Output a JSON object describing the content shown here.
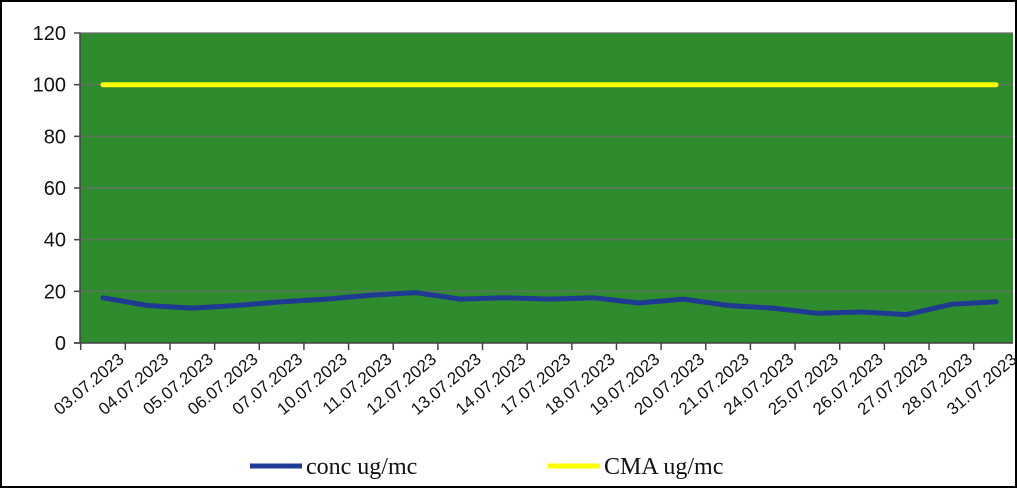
{
  "chart_data": {
    "type": "line",
    "title": "",
    "xlabel": "",
    "ylabel": "",
    "ylim": [
      0,
      120
    ],
    "y_ticks": [
      0,
      20,
      40,
      60,
      80,
      100,
      120
    ],
    "grid": true,
    "plot_background": "#2e8b2e",
    "legend_position": "bottom",
    "categories": [
      "03.07.2023",
      "04.07.2023",
      "05.07.2023",
      "06.07.2023",
      "07.07.2023",
      "10.07.2023",
      "11.07.2023",
      "12.07.2023",
      "13.07.2023",
      "14.07.2023",
      "17.07.2023",
      "18.07.2023",
      "19.07.2023",
      "20.07.2023",
      "21.07.2023",
      "24.07.2023",
      "25.07.2023",
      "26.07.2023",
      "27.07.2023",
      "28.07.2023",
      "31.07.2023"
    ],
    "series": [
      {
        "name": "conc ug/mc",
        "color": "#1f3a93",
        "values": [
          17.5,
          14.5,
          13.5,
          14.5,
          16,
          17,
          18.5,
          19.5,
          17,
          17.5,
          17,
          17.5,
          15.5,
          17,
          14.5,
          13.5,
          11.5,
          12,
          11,
          15,
          16
        ]
      },
      {
        "name": "CMA ug/mc",
        "color": "#ffff00",
        "values": [
          100,
          100,
          100,
          100,
          100,
          100,
          100,
          100,
          100,
          100,
          100,
          100,
          100,
          100,
          100,
          100,
          100,
          100,
          100,
          100,
          100
        ]
      }
    ]
  }
}
